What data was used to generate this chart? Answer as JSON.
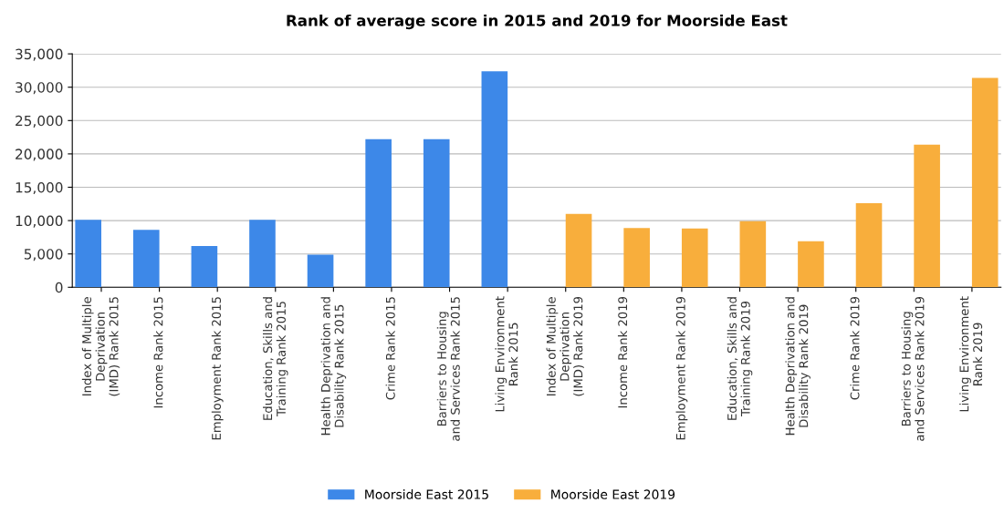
{
  "chart_data": {
    "type": "bar",
    "title": "Rank of average score in 2015 and 2019 for Moorside East",
    "categories": [
      "Index of Multiple\nDeprivation\n(IMD) Rank 2015",
      "Income Rank 2015",
      "Employment Rank 2015",
      "Education, Skills and\nTraining Rank 2015",
      "Health Deprivation and\nDisability Rank 2015",
      "Crime Rank 2015",
      "Barriers to Housing\nand Services Rank 2015",
      "Living Environment\nRank 2015",
      "Index of Multiple\nDeprivation\n(IMD) Rank 2019",
      "Income Rank 2019",
      "Employment Rank 2019",
      "Education, Skills and\nTraining Rank 2019",
      "Health Deprivation and\nDisability Rank 2019",
      "Crime Rank 2019",
      "Barriers to Housing\nand Services Rank 2019",
      "Living Environment\nRank 2019"
    ],
    "series": [
      {
        "name": "Moorside East 2015",
        "color": "#3d88e8",
        "values": [
          10100,
          8600,
          6200,
          10100,
          4900,
          22200,
          22200,
          32400,
          null,
          null,
          null,
          null,
          null,
          null,
          null,
          null
        ]
      },
      {
        "name": "Moorside East 2019",
        "color": "#f8ae3c",
        "values": [
          null,
          null,
          null,
          null,
          null,
          null,
          null,
          null,
          11000,
          8900,
          8800,
          9900,
          6900,
          12600,
          21400,
          31400
        ]
      }
    ],
    "ylim": [
      0,
      35000
    ],
    "yticks": [
      {
        "value": 0,
        "label": "0"
      },
      {
        "value": 5000,
        "label": "5,000"
      },
      {
        "value": 10000,
        "label": "10,000"
      },
      {
        "value": 15000,
        "label": "15,000"
      },
      {
        "value": 20000,
        "label": "20,000"
      },
      {
        "value": 25000,
        "label": "25,000"
      },
      {
        "value": 30000,
        "label": "30,000"
      },
      {
        "value": 35000,
        "label": "35,000"
      }
    ],
    "grid": "y",
    "legend": "bottom"
  }
}
